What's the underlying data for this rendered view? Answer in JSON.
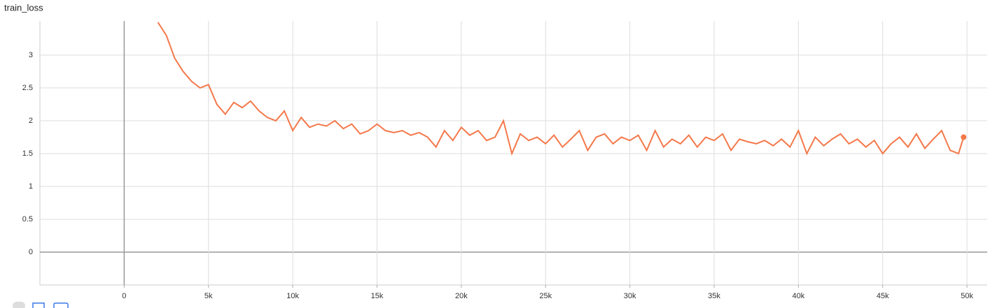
{
  "chart_data": {
    "type": "line",
    "title": "train_loss",
    "color": "#f4784a",
    "grid": true,
    "x": [
      2000,
      2500,
      3000,
      3500,
      4000,
      4500,
      5000,
      5500,
      6000,
      6500,
      7000,
      7500,
      8000,
      8500,
      9000,
      9500,
      10000,
      10500,
      11000,
      11500,
      12000,
      12500,
      13000,
      13500,
      14000,
      14500,
      15000,
      15500,
      16000,
      16500,
      17000,
      17500,
      18000,
      18500,
      19000,
      19500,
      20000,
      20500,
      21000,
      21500,
      22000,
      22500,
      23000,
      23500,
      24000,
      24500,
      25000,
      25500,
      26000,
      26500,
      27000,
      27500,
      28000,
      28500,
      29000,
      29500,
      30000,
      30500,
      31000,
      31500,
      32000,
      32500,
      33000,
      33500,
      34000,
      34500,
      35000,
      35500,
      36000,
      36500,
      37000,
      37500,
      38000,
      38500,
      39000,
      39500,
      40000,
      40500,
      41000,
      41500,
      42000,
      42500,
      43000,
      43500,
      44000,
      44500,
      45000,
      45500,
      46000,
      46500,
      47000,
      47500,
      48000,
      48500,
      49000,
      49500,
      49800
    ],
    "values": [
      3.5,
      3.3,
      2.95,
      2.75,
      2.6,
      2.5,
      2.55,
      2.25,
      2.1,
      2.28,
      2.2,
      2.3,
      2.15,
      2.05,
      2.0,
      2.15,
      1.85,
      2.05,
      1.9,
      1.95,
      1.92,
      2.0,
      1.88,
      1.95,
      1.8,
      1.85,
      1.95,
      1.85,
      1.82,
      1.85,
      1.78,
      1.82,
      1.75,
      1.6,
      1.85,
      1.7,
      1.9,
      1.78,
      1.85,
      1.7,
      1.75,
      2.0,
      1.5,
      1.8,
      1.7,
      1.75,
      1.65,
      1.78,
      1.6,
      1.72,
      1.85,
      1.55,
      1.75,
      1.8,
      1.65,
      1.75,
      1.7,
      1.78,
      1.55,
      1.85,
      1.6,
      1.72,
      1.65,
      1.78,
      1.6,
      1.75,
      1.7,
      1.8,
      1.55,
      1.72,
      1.68,
      1.65,
      1.7,
      1.62,
      1.72,
      1.6,
      1.85,
      1.5,
      1.75,
      1.62,
      1.72,
      1.8,
      1.65,
      1.72,
      1.6,
      1.7,
      1.5,
      1.65,
      1.75,
      1.6,
      1.8,
      1.58,
      1.72,
      1.85,
      1.55,
      1.5,
      1.75
    ],
    "xlim": [
      -5000,
      51200
    ],
    "ylim": [
      -0.5,
      3.52
    ],
    "xticks": [
      0,
      {
        "value": 5000,
        "label": "5k"
      },
      {
        "value": 10000,
        "label": "10k"
      },
      {
        "value": 15000,
        "label": "15k"
      },
      {
        "value": 20000,
        "label": "20k"
      },
      {
        "value": 25000,
        "label": "25k"
      },
      {
        "value": 30000,
        "label": "30k"
      },
      {
        "value": 35000,
        "label": "35k"
      },
      {
        "value": 40000,
        "label": "40k"
      },
      {
        "value": 45000,
        "label": "45k"
      },
      {
        "value": 50000,
        "label": "50k"
      }
    ],
    "yticks": [
      0,
      0.5,
      1,
      1.5,
      2,
      2.5,
      3
    ]
  }
}
